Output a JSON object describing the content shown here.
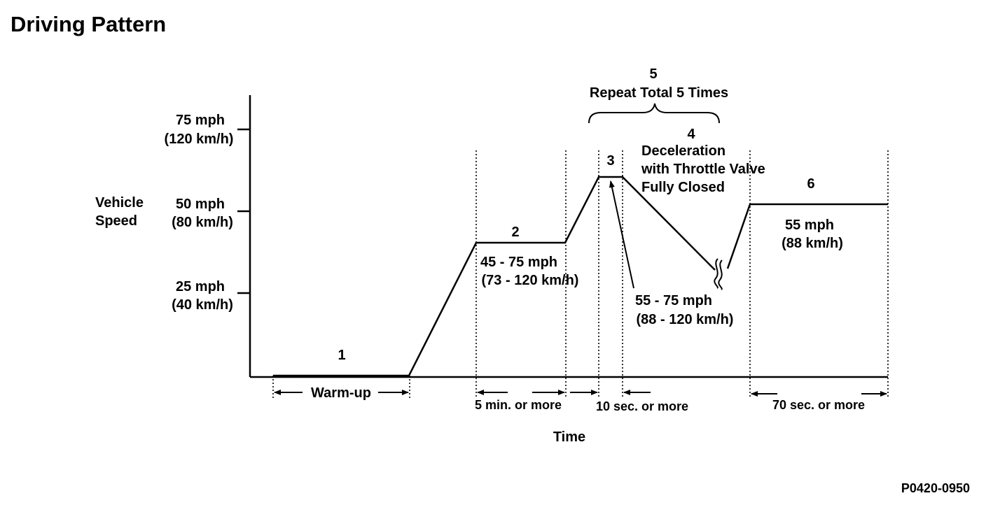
{
  "title": "Driving Pattern",
  "figure_code": "P0420-0950",
  "y_axis": {
    "label_line1": "Vehicle",
    "label_line2": "Speed",
    "ticks": [
      {
        "mph": "75 mph",
        "kmh": "(120 km/h)"
      },
      {
        "mph": "50 mph",
        "kmh": "(80 km/h)"
      },
      {
        "mph": "25 mph",
        "kmh": "(40 km/h)"
      }
    ]
  },
  "x_axis": {
    "label": "Time"
  },
  "steps": [
    {
      "number": "1"
    },
    {
      "number": "2",
      "speed_line1": "45 - 75 mph",
      "speed_line2": "(73 - 120 km/h)"
    },
    {
      "number": "3"
    },
    {
      "number": "4",
      "desc_line1": "Deceleration",
      "desc_line2": "with Throttle Valve",
      "desc_line3": "Fully Closed"
    },
    {
      "number": "5",
      "desc": "Repeat Total 5 Times"
    },
    {
      "number": "6",
      "speed_line1": "55 mph",
      "speed_line2": "(88 km/h)"
    }
  ],
  "peak_speed": {
    "line1": "55 - 75 mph",
    "line2": "(88 - 120 km/h)"
  },
  "durations": {
    "warmup": "Warm-up",
    "step2": "5 min. or more",
    "step3": "10 sec. or more",
    "step6": "70 sec. or more"
  }
}
